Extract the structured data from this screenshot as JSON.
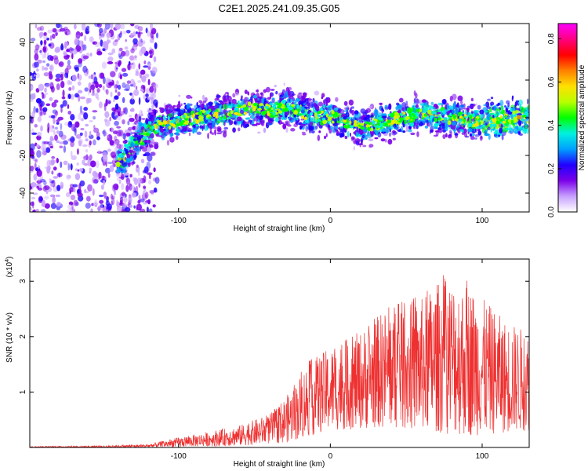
{
  "title": "C2E1.2025.241.09.35.G05",
  "colors": {
    "snr_line": "#ee3030",
    "axis": "#000000"
  },
  "chart_data": [
    {
      "type": "heatmap",
      "name": "spectrogram",
      "xlabel": "Height of straight line (km)",
      "ylabel": "Frequency (Hz)",
      "xlim": [
        -198,
        131
      ],
      "ylim": [
        -50,
        50
      ],
      "xticks": [
        -100,
        0,
        100
      ],
      "yticks": [
        -40,
        -20,
        0,
        20,
        40
      ],
      "colorbar": {
        "label": "Normalized spectral amplitude",
        "range": [
          0,
          0.87
        ],
        "ticks": [
          0.0,
          0.2,
          0.4,
          0.6,
          0.8
        ],
        "colormap": [
          "#ffffff",
          "#c8a0ff",
          "#7a00e8",
          "#2000ff",
          "#00a0ff",
          "#00f0e0",
          "#00ff00",
          "#b8ff00",
          "#ffe000",
          "#ff8000",
          "#ff0000",
          "#ff0080",
          "#ff00ff"
        ]
      },
      "signal_track_hz": [
        [
          -140,
          -25
        ],
        [
          -125,
          -10
        ],
        [
          -110,
          -3
        ],
        [
          -90,
          0
        ],
        [
          -70,
          2
        ],
        [
          -50,
          5
        ],
        [
          -40,
          4
        ],
        [
          -30,
          6
        ],
        [
          -20,
          3
        ],
        [
          -10,
          0
        ],
        [
          0,
          1
        ],
        [
          20,
          -5
        ],
        [
          40,
          -1
        ],
        [
          60,
          2
        ],
        [
          80,
          0
        ],
        [
          100,
          -2
        ],
        [
          120,
          0
        ],
        [
          131,
          1
        ]
      ],
      "noise_floor_region_km": [
        -198,
        -120
      ]
    },
    {
      "type": "line",
      "name": "snr",
      "xlabel": "Height of straight line (km)",
      "ylabel": "SNR (10 * v/v)",
      "y_multiplier": "(x10",
      "y_multiplier_exp": "4",
      "y_multiplier_close": ")",
      "xlim": [
        -198,
        131
      ],
      "ylim": [
        0,
        3.4
      ],
      "xticks": [
        -100,
        0,
        100
      ],
      "yticks": [
        1,
        2,
        3
      ],
      "envelope_max": [
        [
          -198,
          0.02
        ],
        [
          -150,
          0.03
        ],
        [
          -120,
          0.06
        ],
        [
          -100,
          0.18
        ],
        [
          -80,
          0.28
        ],
        [
          -60,
          0.4
        ],
        [
          -40,
          0.6
        ],
        [
          -25,
          1.05
        ],
        [
          -15,
          1.55
        ],
        [
          0,
          1.8
        ],
        [
          20,
          2.1
        ],
        [
          40,
          2.6
        ],
        [
          60,
          2.7
        ],
        [
          75,
          3.1
        ],
        [
          90,
          3.0
        ],
        [
          100,
          2.7
        ],
        [
          115,
          2.3
        ],
        [
          131,
          2.1
        ]
      ],
      "envelope_min": [
        [
          -198,
          0.0
        ],
        [
          -120,
          0.0
        ],
        [
          -60,
          0.03
        ],
        [
          -30,
          0.08
        ],
        [
          0,
          0.3
        ],
        [
          30,
          0.35
        ],
        [
          60,
          0.3
        ],
        [
          90,
          0.2
        ],
        [
          131,
          0.3
        ]
      ]
    }
  ]
}
